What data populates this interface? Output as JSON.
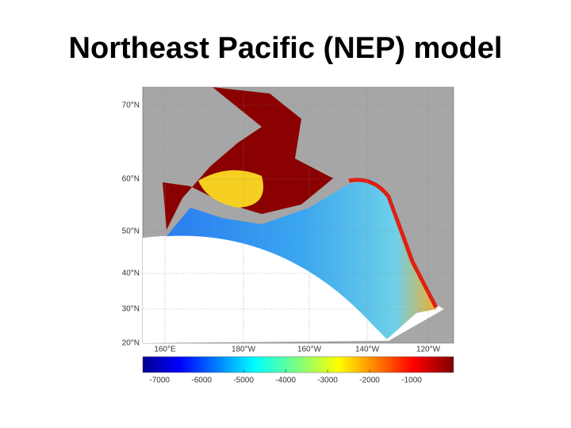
{
  "title": "Northeast Pacific (NEP) model",
  "map": {
    "lat_labels": [
      "70°N",
      "60°N",
      "50°N",
      "40°N",
      "30°N",
      "20°N"
    ],
    "lon_labels": [
      "160°E",
      "180°W",
      "160°W",
      "140°W",
      "120°W"
    ],
    "colorbar": {
      "lim": [
        -7400,
        0
      ],
      "ticks": [
        -7000,
        -6000,
        -5000,
        -4000,
        -3000,
        -2000,
        -1000
      ]
    }
  }
}
